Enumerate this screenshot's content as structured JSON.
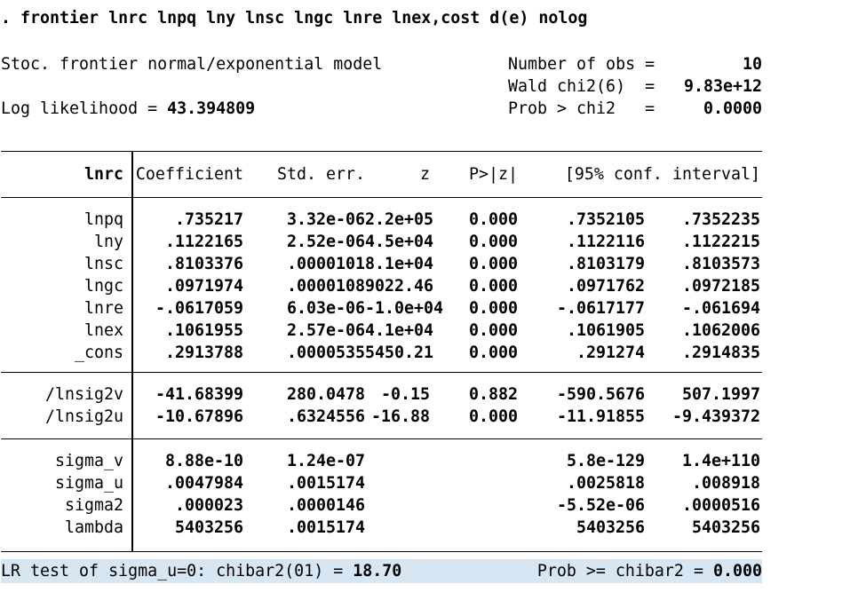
{
  "console": {
    "command": ". frontier lnrc lnpq lny lnsc lngc lnre lnex,cost d(e) nolog",
    "model_line": "Stoc. frontier normal/exponential model",
    "loglik_label": "Log likelihood = ",
    "loglik_value": "43.394809",
    "stats": [
      {
        "label": "Number of obs",
        "eq": "=",
        "value": "10"
      },
      {
        "label": "Wald chi2(6)",
        "eq": "=",
        "value": "9.83e+12"
      },
      {
        "label": "Prob > chi2",
        "eq": "=",
        "value": "0.0000"
      }
    ]
  },
  "table": {
    "depvar": "lnrc",
    "headers": [
      "Coefficient",
      "Std. err.",
      "z",
      "P>|z|",
      "[95% conf. interval]"
    ],
    "groups": [
      {
        "rows": [
          {
            "label": "lnpq",
            "cells": [
              ".735217",
              "3.32e-06",
              "2.2e+05",
              "0.000",
              ".7352105",
              ".7352235"
            ]
          },
          {
            "label": "lny",
            "cells": [
              ".1122165",
              "2.52e-06",
              "4.5e+04",
              "0.000",
              ".1122116",
              ".1122215"
            ]
          },
          {
            "label": "lnsc",
            "cells": [
              ".8103376",
              ".0000101",
              "8.1e+04",
              "0.000",
              ".8103179",
              ".8103573"
            ]
          },
          {
            "label": "lngc",
            "cells": [
              ".0971974",
              ".0000108",
              "9022.46",
              "0.000",
              ".0971762",
              ".0972185"
            ]
          },
          {
            "label": "lnre",
            "cells": [
              "-.0617059",
              "6.03e-06",
              "-1.0e+04",
              "0.000",
              "-.0617177",
              "-.061694"
            ]
          },
          {
            "label": "lnex",
            "cells": [
              ".1061955",
              "2.57e-06",
              "4.1e+04",
              "0.000",
              ".1061905",
              ".1062006"
            ]
          },
          {
            "label": "_cons",
            "cells": [
              ".2913788",
              ".0000535",
              "5450.21",
              "0.000",
              ".291274",
              ".2914835"
            ]
          }
        ]
      },
      {
        "rows": [
          {
            "label": "/lnsig2v",
            "cells": [
              "-41.68399",
              "280.0478",
              "-0.15",
              "0.882",
              "-590.5676",
              "507.1997"
            ]
          },
          {
            "label": "/lnsig2u",
            "cells": [
              "-10.67896",
              ".6324556",
              "-16.88",
              "0.000",
              "-11.91855",
              "-9.439372"
            ]
          }
        ]
      },
      {
        "rows": [
          {
            "label": "sigma_v",
            "cells": [
              "8.88e-10",
              "1.24e-07",
              "",
              "",
              "5.8e-129",
              "1.4e+110"
            ]
          },
          {
            "label": "sigma_u",
            "cells": [
              ".0047984",
              ".0015174",
              "",
              "",
              ".0025818",
              ".008918"
            ]
          },
          {
            "label": "sigma2",
            "cells": [
              ".000023",
              ".0000146",
              "",
              "",
              "-5.52e-06",
              ".0000516"
            ]
          },
          {
            "label": "lambda",
            "cells": [
              "5403256",
              ".0015174",
              "",
              "",
              "5403256",
              "5403256"
            ]
          }
        ]
      }
    ]
  },
  "footer": {
    "lr_label": "LR test of sigma_u=0: chibar2(01) = ",
    "lr_value": "18.70",
    "prob_label": "Prob >= chibar2 = ",
    "prob_value": "0.000",
    "highlight_color": "#d6e6f2"
  }
}
